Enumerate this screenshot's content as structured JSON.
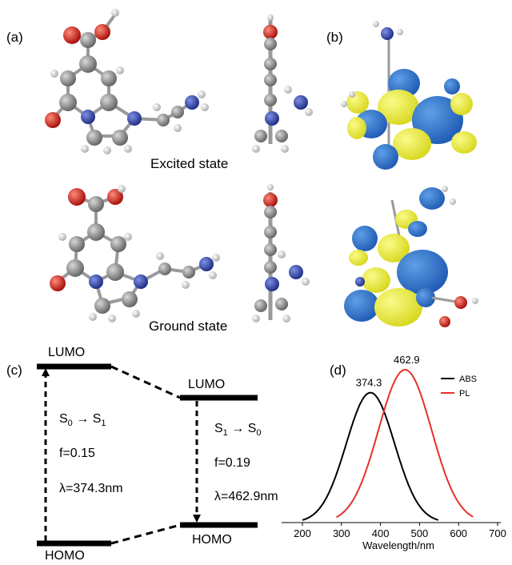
{
  "panels": {
    "a": "(a)",
    "b": "(b)",
    "c": "(c)",
    "d": "(d)"
  },
  "captions": {
    "excited": "Excited state",
    "ground": "Ground state"
  },
  "energy_diagram": {
    "left": {
      "lumo": "LUMO",
      "homo": "HOMO",
      "transition_prefix": "S",
      "transition_from_sub": "0",
      "arrow": "→",
      "transition_to_prefix": "S",
      "transition_to_sub": "1",
      "f": "f=0.15",
      "lambda": "λ=374.3nm"
    },
    "right": {
      "lumo": "LUMO",
      "homo": "HOMO",
      "transition_prefix": "S",
      "transition_from_sub": "1",
      "arrow": "→",
      "transition_to_prefix": "S",
      "transition_to_sub": "0",
      "f": "f=0.19",
      "lambda": "λ=462.9nm"
    }
  },
  "colors": {
    "carbon": "#7d7d7d",
    "oxygen": "#d0100b",
    "nitrogen": "#2b3ea8",
    "hydrogen": "#dcdcdc",
    "orbital_blue": "#2b6fc9",
    "orbital_yellow": "#eeee3a",
    "abs": "#000000",
    "pl": "#e8302a"
  },
  "chart_data": {
    "type": "line",
    "xlabel": "Wavelength/nm",
    "ylabel": "",
    "xlim": [
      200,
      700
    ],
    "x_ticks": [
      "200",
      "300",
      "400",
      "500",
      "600",
      "700"
    ],
    "legend_position": "top-right",
    "series": [
      {
        "name": "ABS",
        "peak": 374.3,
        "peak_label": "374.3",
        "sigma": 62,
        "range": [
          200,
          548
        ],
        "relative_height": 0.85
      },
      {
        "name": "PL",
        "peak": 462.9,
        "peak_label": "462.9",
        "sigma": 68,
        "range": [
          287,
          638
        ],
        "relative_height": 1.0
      }
    ]
  }
}
